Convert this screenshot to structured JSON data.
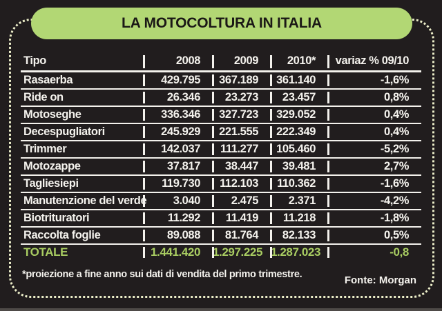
{
  "title": "LA MOTOCOLTURA IN ITALIA",
  "table": {
    "columns": [
      "Tipo",
      "2008",
      "2009",
      "2010*",
      "variaz % 09/10"
    ],
    "rows": [
      [
        "Rasaerba",
        "429.795",
        "367.189",
        "361.140",
        "-1,6%"
      ],
      [
        "Ride on",
        "26.346",
        "23.273",
        "23.457",
        "0,8%"
      ],
      [
        "Motoseghe",
        "336.346",
        "327.723",
        "329.052",
        "0,4%"
      ],
      [
        "Decespugliatori",
        "245.929",
        "221.555",
        "222.349",
        "0,4%"
      ],
      [
        "Trimmer",
        "142.037",
        "111.277",
        "105.460",
        "-5,2%"
      ],
      [
        "Motozappe",
        "37.817",
        "38.447",
        "39.481",
        "2,7%"
      ],
      [
        "Tagliesiepi",
        "119.730",
        "112.103",
        "110.362",
        "-1,6%"
      ],
      [
        "Manutenzione del verde",
        "3.040",
        "2.475",
        "2.371",
        "-4,2%"
      ],
      [
        "Biotrituratori",
        "11.292",
        "11.419",
        "11.218",
        "-1,8%"
      ],
      [
        "Raccolta foglie",
        "89.088",
        "81.764",
        "82.133",
        "0,5%"
      ]
    ],
    "total_row": [
      "TOTALE",
      "1.441.420",
      "1.297.225",
      "1.287.023",
      "-0,8"
    ]
  },
  "footnote": "*proiezione a fine anno sui dati di vendita del primo trimestre.",
  "source": "Fonte: Morgan",
  "colors": {
    "background": "#211d1e",
    "accent_green": "#b2d774",
    "total_green": "#a9cd62",
    "dotted_border": "#eceec9",
    "text": "#f4f2ed"
  },
  "chart_data": {
    "type": "table",
    "title": "LA MOTOCOLTURA IN ITALIA",
    "columns": [
      "Tipo",
      "2008",
      "2009",
      "2010*",
      "variaz % 09/10"
    ],
    "rows": [
      {
        "tipo": "Rasaerba",
        "y2008": 429795,
        "y2009": 367189,
        "y2010": 361140,
        "variaz_pct_09_10": -1.6
      },
      {
        "tipo": "Ride on",
        "y2008": 26346,
        "y2009": 23273,
        "y2010": 23457,
        "variaz_pct_09_10": 0.8
      },
      {
        "tipo": "Motoseghe",
        "y2008": 336346,
        "y2009": 327723,
        "y2010": 329052,
        "variaz_pct_09_10": 0.4
      },
      {
        "tipo": "Decespugliatori",
        "y2008": 245929,
        "y2009": 221555,
        "y2010": 222349,
        "variaz_pct_09_10": 0.4
      },
      {
        "tipo": "Trimmer",
        "y2008": 142037,
        "y2009": 111277,
        "y2010": 105460,
        "variaz_pct_09_10": -5.2
      },
      {
        "tipo": "Motozappe",
        "y2008": 37817,
        "y2009": 38447,
        "y2010": 39481,
        "variaz_pct_09_10": 2.7
      },
      {
        "tipo": "Tagliesiepi",
        "y2008": 119730,
        "y2009": 112103,
        "y2010": 110362,
        "variaz_pct_09_10": -1.6
      },
      {
        "tipo": "Manutenzione del verde",
        "y2008": 3040,
        "y2009": 2475,
        "y2010": 2371,
        "variaz_pct_09_10": -4.2
      },
      {
        "tipo": "Biotrituratori",
        "y2008": 11292,
        "y2009": 11419,
        "y2010": 11218,
        "variaz_pct_09_10": -1.8
      },
      {
        "tipo": "Raccolta foglie",
        "y2008": 89088,
        "y2009": 81764,
        "y2010": 82133,
        "variaz_pct_09_10": 0.5
      }
    ],
    "total": {
      "tipo": "TOTALE",
      "y2008": 1441420,
      "y2009": 1297225,
      "y2010": 1287023,
      "variaz_pct_09_10": -0.8
    },
    "footnote": "*proiezione a fine anno sui dati di vendita del primo trimestre.",
    "source": "Fonte: Morgan"
  }
}
